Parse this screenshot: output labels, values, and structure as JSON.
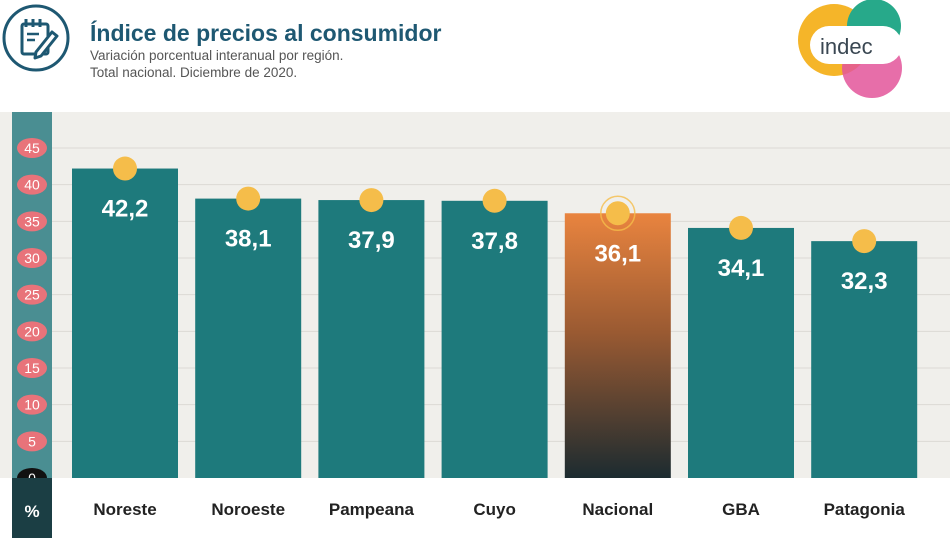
{
  "header": {
    "title": "Índice de precios al consumidor",
    "subtitle_line1": "Variación porcentual interanual por región.",
    "subtitle_line2": "Total nacional. Diciembre de 2020.",
    "logo_text": "indec",
    "icon": "edit-document-icon"
  },
  "colors": {
    "bar": "#1e7a7c",
    "highlight_top": "#e9843f",
    "highlight_bottom": "#1c2b30",
    "dot": "#f5bd4a",
    "tick_badge": "#e8737a",
    "axis_band": "#4a8e92",
    "title": "#1e5872"
  },
  "chart_data": {
    "type": "bar",
    "title": "Índice de precios al consumidor",
    "subtitle": "Variación porcentual interanual por región. Total nacional. Diciembre de 2020.",
    "ylabel": "%",
    "xlabel": "",
    "categories": [
      "Noreste",
      "Noroeste",
      "Pampeana",
      "Cuyo",
      "Nacional",
      "GBA",
      "Patagonia"
    ],
    "values": [
      42.2,
      38.1,
      37.9,
      37.8,
      36.1,
      34.1,
      32.3
    ],
    "value_labels": [
      "42,2",
      "38,1",
      "37,9",
      "37,8",
      "36,1",
      "34,1",
      "32,3"
    ],
    "highlight_index": 4,
    "ylim": [
      0,
      45
    ],
    "yticks": [
      0,
      5,
      10,
      15,
      20,
      25,
      30,
      35,
      40,
      45
    ],
    "grid": true
  }
}
